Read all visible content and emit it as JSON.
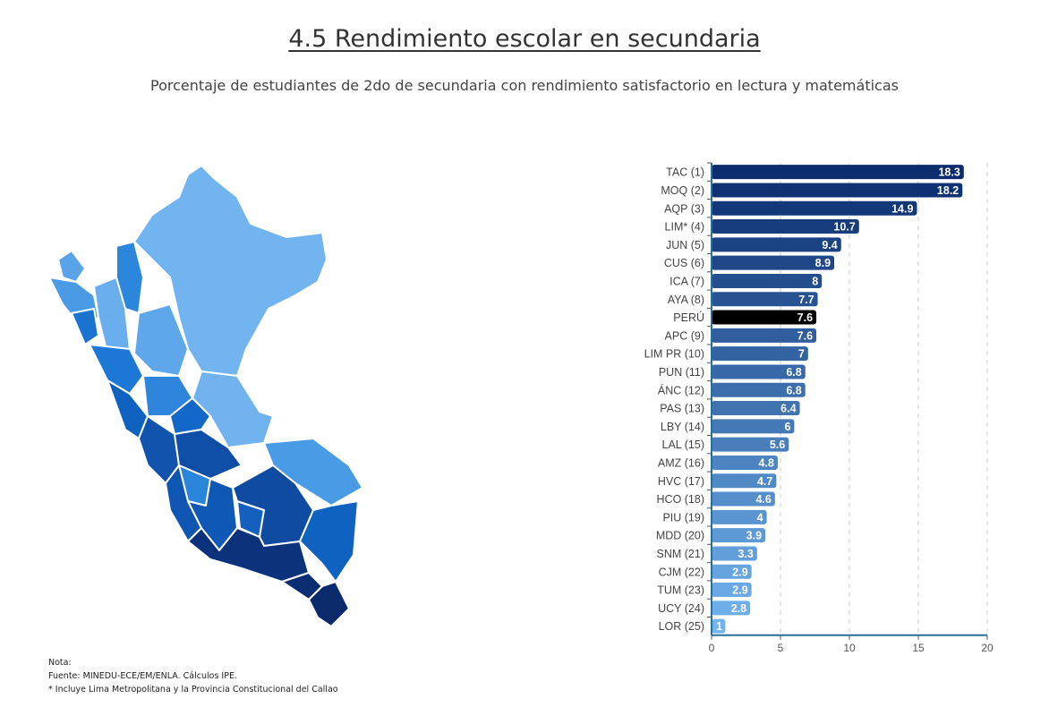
{
  "header": {
    "title": "4.5 Rendimiento escolar en secundaria",
    "subtitle": "Porcentaje de estudiantes de 2do de secundaria con rendimiento satisfactorio en lectura y matemáticas"
  },
  "chart_data": {
    "type": "bar",
    "orientation": "horizontal",
    "categories": [
      "TAC (1)",
      "MOQ (2)",
      "AQP (3)",
      "LIM* (4)",
      "JUN (5)",
      "CUS (6)",
      "ICA (7)",
      "AYA (8)",
      "PERÚ",
      "APC (9)",
      "LIM PR (10)",
      "PUN (11)",
      "ÁNC (12)",
      "PAS (13)",
      "LBY (14)",
      "LAL (15)",
      "AMZ (16)",
      "HVC (17)",
      "HCO (18)",
      "PIU (19)",
      "MDD (20)",
      "SNM (21)",
      "CJM (22)",
      "TUM (23)",
      "UCY (24)",
      "LOR (25)"
    ],
    "values": [
      18.3,
      18.2,
      14.9,
      10.7,
      9.4,
      8.9,
      8,
      7.7,
      7.6,
      7.6,
      7,
      6.8,
      6.8,
      6.4,
      6,
      5.6,
      4.8,
      4.7,
      4.6,
      4,
      3.9,
      3.3,
      2.9,
      2.9,
      2.8,
      1
    ],
    "value_labels": [
      "18.3",
      "18.2",
      "14.9",
      "10.7",
      "9.4",
      "8.9",
      "8",
      "7.7",
      "7.6",
      "7.6",
      "7",
      "6.8",
      "6.8",
      "6.4",
      "6",
      "5.6",
      "4.8",
      "4.7",
      "4.6",
      "4",
      "3.9",
      "3.3",
      "2.9",
      "2.9",
      "2.8",
      "1"
    ],
    "highlight": "PERÚ",
    "xlim": [
      0,
      20
    ],
    "xticks": [
      "0",
      "5",
      "10",
      "15",
      "20"
    ],
    "grid": "vertical dashed",
    "colors": {
      "dark": "#0b2d6e",
      "light": "#72b4ef",
      "highlight": "#000000"
    }
  },
  "notes": {
    "label": "Nota:",
    "source": "Fuente: MINEDU-ECE/EM/ENLA. Cálculos IPE.",
    "footnote": "* Incluye Lima Metropolitana y la Provincia Constitucional del Callao"
  }
}
